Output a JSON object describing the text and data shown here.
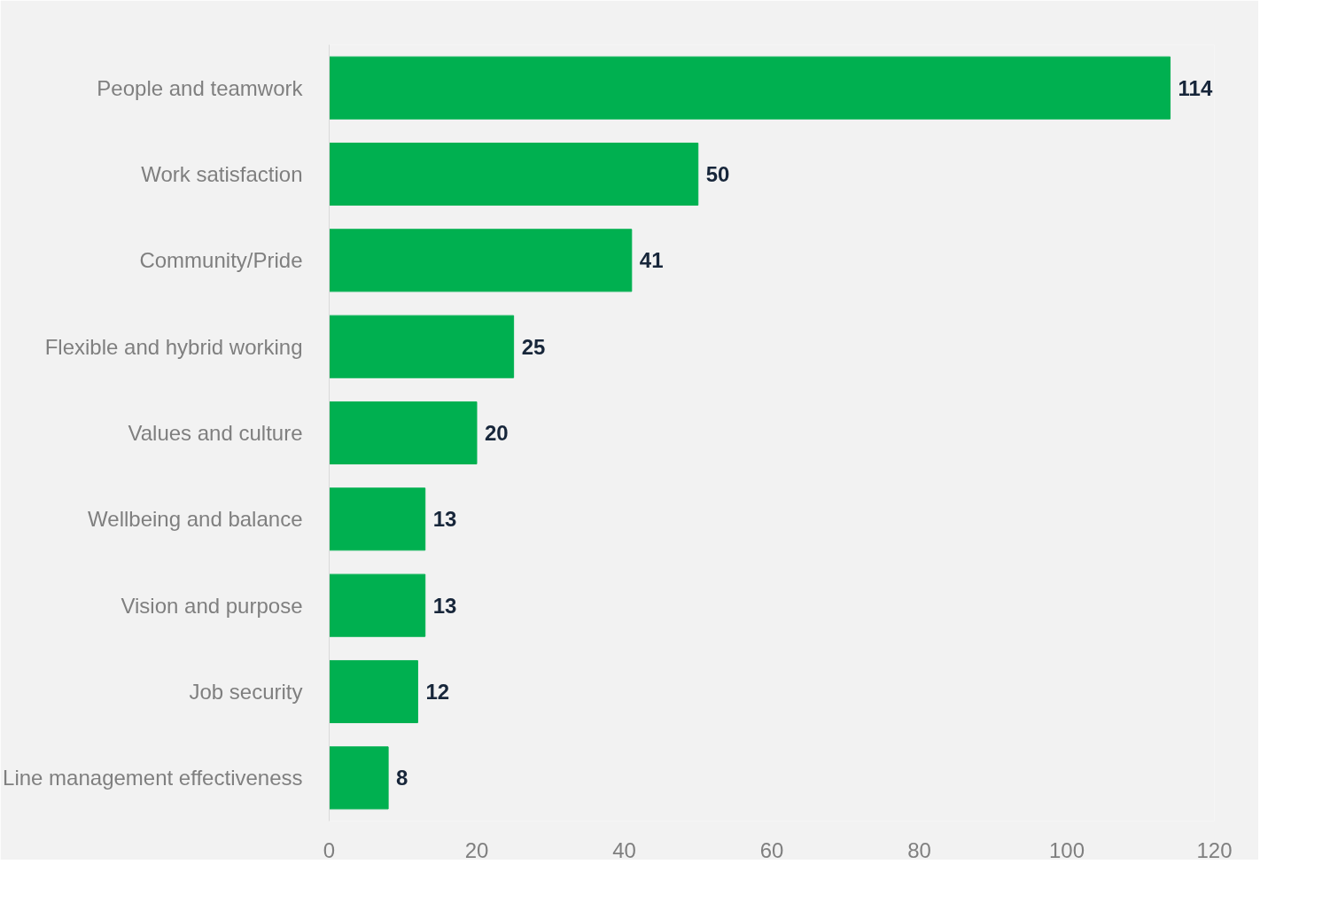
{
  "chart_data": {
    "type": "bar",
    "orientation": "horizontal",
    "categories": [
      "People and teamwork",
      "Work satisfaction",
      "Community/Pride",
      "Flexible and hybrid working",
      "Values and culture",
      "Wellbeing and balance",
      "Vision and purpose",
      "Job security",
      "Line management effectiveness"
    ],
    "values": [
      114,
      50,
      41,
      25,
      20,
      13,
      13,
      12,
      8
    ],
    "color": "#00b050",
    "xlim": [
      0,
      120
    ],
    "xticks": [
      0,
      20,
      40,
      60,
      80,
      100,
      120
    ],
    "data_labels": true,
    "grid": false
  }
}
